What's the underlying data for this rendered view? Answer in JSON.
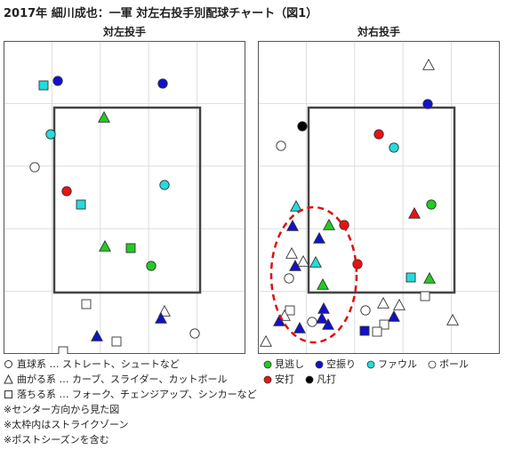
{
  "title": "2017年 細川成也：一軍 対左右投手別配球チャート（図1）",
  "panels": [
    {
      "title": "対左投手"
    },
    {
      "title": "対右投手"
    }
  ],
  "legend": {
    "shapes": [
      {
        "shape": "circle",
        "text": "直球系 … ストレート、シュートなど"
      },
      {
        "shape": "triangle",
        "text": "曲がる系 … カーブ、スライダー、カットボール"
      },
      {
        "shape": "square",
        "text": "落ちる系 … フォーク、チェンジアップ、シンカーなど"
      }
    ],
    "results": [
      {
        "label": "見逃し",
        "color": "#22cc22"
      },
      {
        "label": "空振り",
        "color": "#1111cc"
      },
      {
        "label": "ファウル",
        "color": "#22dddd"
      },
      {
        "label": "ボール",
        "color": "#ffffff"
      },
      {
        "label": "安打",
        "color": "#ee1111"
      },
      {
        "label": "凡打",
        "color": "#000000"
      }
    ],
    "notes": [
      "※センター方向から見た図",
      "※太枠内はストライクゾーン",
      "※ポストシーズンを含む"
    ]
  },
  "chart_data": [
    {
      "type": "scatter",
      "title": "対左投手",
      "x_range": [
        0,
        270
      ],
      "y_range": [
        0,
        350
      ],
      "strike_zone": {
        "x": [
          56,
          220
        ],
        "y": [
          74,
          282
        ]
      },
      "points": [
        {
          "x": 44,
          "y": 49,
          "shape": "square",
          "result": "ファウル"
        },
        {
          "x": 60,
          "y": 44,
          "shape": "circle",
          "result": "空振り"
        },
        {
          "x": 178,
          "y": 47,
          "shape": "circle",
          "result": "空振り"
        },
        {
          "x": 112,
          "y": 85,
          "shape": "triangle",
          "result": "見逃し"
        },
        {
          "x": 52,
          "y": 104,
          "shape": "circle",
          "result": "ファウル"
        },
        {
          "x": 34,
          "y": 141,
          "shape": "circle",
          "result": "ボール"
        },
        {
          "x": 70,
          "y": 168,
          "shape": "circle",
          "result": "安打"
        },
        {
          "x": 180,
          "y": 161,
          "shape": "circle",
          "result": "ファウル"
        },
        {
          "x": 86,
          "y": 183,
          "shape": "square",
          "result": "ファウル"
        },
        {
          "x": 113,
          "y": 230,
          "shape": "triangle",
          "result": "見逃し"
        },
        {
          "x": 142,
          "y": 232,
          "shape": "square",
          "result": "見逃し"
        },
        {
          "x": 165,
          "y": 252,
          "shape": "circle",
          "result": "見逃し"
        },
        {
          "x": 92,
          "y": 295,
          "shape": "square",
          "result": "ボール"
        },
        {
          "x": 180,
          "y": 303,
          "shape": "triangle",
          "result": "ボール"
        },
        {
          "x": 176,
          "y": 311,
          "shape": "triangle",
          "result": "空振り"
        },
        {
          "x": 214,
          "y": 328,
          "shape": "circle",
          "result": "ボール"
        },
        {
          "x": 104,
          "y": 331,
          "shape": "triangle",
          "result": "空振り"
        },
        {
          "x": 126,
          "y": 337,
          "shape": "square",
          "result": "ボール"
        },
        {
          "x": 66,
          "y": 348,
          "shape": "square",
          "result": "ボール"
        }
      ]
    },
    {
      "type": "scatter",
      "title": "対右投手",
      "x_range": [
        0,
        270
      ],
      "y_range": [
        0,
        350
      ],
      "strike_zone": {
        "x": [
          56,
          220
        ],
        "y": [
          74,
          282
        ]
      },
      "highlight": {
        "shape": "ellipse",
        "cx": 62,
        "cy": 262,
        "rx": 48,
        "ry": 76,
        "color": "#dd1111"
      },
      "points": [
        {
          "x": 191,
          "y": 26,
          "shape": "triangle",
          "result": "ボール"
        },
        {
          "x": 190,
          "y": 70,
          "shape": "circle",
          "result": "空振り"
        },
        {
          "x": 49,
          "y": 95,
          "shape": "circle",
          "result": "凡打"
        },
        {
          "x": 135,
          "y": 104,
          "shape": "circle",
          "result": "安打"
        },
        {
          "x": 152,
          "y": 119,
          "shape": "circle",
          "result": "ファウル"
        },
        {
          "x": 25,
          "y": 117,
          "shape": "circle",
          "result": "ボール"
        },
        {
          "x": 42,
          "y": 185,
          "shape": "triangle",
          "result": "ファウル"
        },
        {
          "x": 194,
          "y": 183,
          "shape": "circle",
          "result": "見逃し"
        },
        {
          "x": 175,
          "y": 193,
          "shape": "triangle",
          "result": "安打"
        },
        {
          "x": 38,
          "y": 207,
          "shape": "triangle",
          "result": "空振り"
        },
        {
          "x": 79,
          "y": 206,
          "shape": "triangle",
          "result": "見逃し"
        },
        {
          "x": 96,
          "y": 206,
          "shape": "circle",
          "result": "安打"
        },
        {
          "x": 68,
          "y": 221,
          "shape": "triangle",
          "result": "空振り"
        },
        {
          "x": 37,
          "y": 238,
          "shape": "triangle",
          "result": "ボール"
        },
        {
          "x": 50,
          "y": 247,
          "shape": "triangle",
          "result": "ボール"
        },
        {
          "x": 111,
          "y": 250,
          "shape": "circle",
          "result": "安打"
        },
        {
          "x": 64,
          "y": 248,
          "shape": "triangle",
          "result": "ファウル"
        },
        {
          "x": 41,
          "y": 252,
          "shape": "triangle",
          "result": "空振り"
        },
        {
          "x": 34,
          "y": 266,
          "shape": "circle",
          "result": "ボール"
        },
        {
          "x": 171,
          "y": 265,
          "shape": "square",
          "result": "ファウル"
        },
        {
          "x": 192,
          "y": 266,
          "shape": "triangle",
          "result": "見逃し"
        },
        {
          "x": 72,
          "y": 273,
          "shape": "triangle",
          "result": "見逃し"
        },
        {
          "x": 187,
          "y": 286,
          "shape": "square",
          "result": "ボール"
        },
        {
          "x": 140,
          "y": 294,
          "shape": "triangle",
          "result": "ボール"
        },
        {
          "x": 158,
          "y": 296,
          "shape": "triangle",
          "result": "ボール"
        },
        {
          "x": 35,
          "y": 302,
          "shape": "square",
          "result": "ボール"
        },
        {
          "x": 73,
          "y": 300,
          "shape": "triangle",
          "result": "空振り"
        },
        {
          "x": 120,
          "y": 302,
          "shape": "circle",
          "result": "ボール"
        },
        {
          "x": 29,
          "y": 308,
          "shape": "triangle",
          "result": "ボール"
        },
        {
          "x": 23,
          "y": 314,
          "shape": "triangle",
          "result": "空振り"
        },
        {
          "x": 152,
          "y": 309,
          "shape": "triangle",
          "result": "空振り"
        },
        {
          "x": 71,
          "y": 311,
          "shape": "triangle",
          "result": "空振り"
        },
        {
          "x": 60,
          "y": 315,
          "shape": "circle",
          "result": "ボール"
        },
        {
          "x": 218,
          "y": 313,
          "shape": "triangle",
          "result": "ボール"
        },
        {
          "x": 78,
          "y": 318,
          "shape": "triangle",
          "result": "空振り"
        },
        {
          "x": 46,
          "y": 322,
          "shape": "triangle",
          "result": "空振り"
        },
        {
          "x": 141,
          "y": 318,
          "shape": "square",
          "result": "ボール"
        },
        {
          "x": 133,
          "y": 326,
          "shape": "square",
          "result": "ボール"
        },
        {
          "x": 119,
          "y": 325,
          "shape": "square",
          "result": "空振り"
        },
        {
          "x": 8,
          "y": 337,
          "shape": "triangle",
          "result": "ボール"
        }
      ]
    }
  ]
}
